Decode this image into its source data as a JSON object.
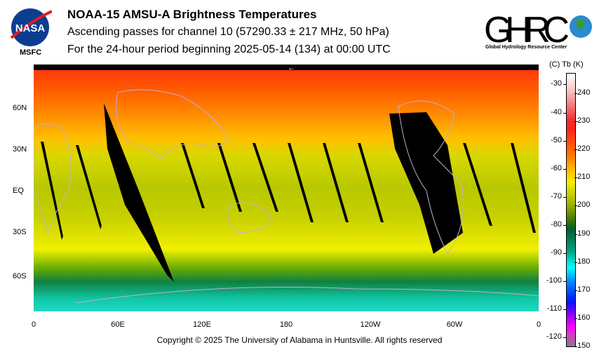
{
  "header": {
    "title": "NOAA-15 AMSU-A Brightness Temperatures",
    "subtitle1": "Ascending passes for channel 10 (57290.33 ± 217 MHz, 50 hPa)",
    "subtitle2": "For the 24-hour period beginning 2025-05-14 (134) at 00:00 UTC"
  },
  "logos": {
    "nasa_text": "NASA",
    "nasa_sub": "MSFC",
    "ghrc_text": "GHRC",
    "ghrc_sub": "Global Hydrology Resource Center"
  },
  "map": {
    "lat_labels": [
      "60N",
      "30N",
      "EQ",
      "30S",
      "60S"
    ],
    "lon_labels": [
      "0",
      "60E",
      "120E",
      "180",
      "120W",
      "60W",
      "0"
    ],
    "arrow": "←"
  },
  "colorbar": {
    "header": "(C)  Tb  (K)",
    "celsius_ticks": [
      "-30",
      "-40",
      "-50",
      "-60",
      "-70",
      "-80",
      "-90",
      "-100",
      "-110",
      "-120"
    ],
    "kelvin_ticks": [
      "240",
      "230",
      "220",
      "210",
      "200",
      "190",
      "180",
      "170",
      "160",
      "150"
    ],
    "range_k": [
      150,
      247
    ]
  },
  "footer": {
    "copyright": "Copyright © 2025 The University of Alabama in Huntsville.  All rights reserved"
  }
}
